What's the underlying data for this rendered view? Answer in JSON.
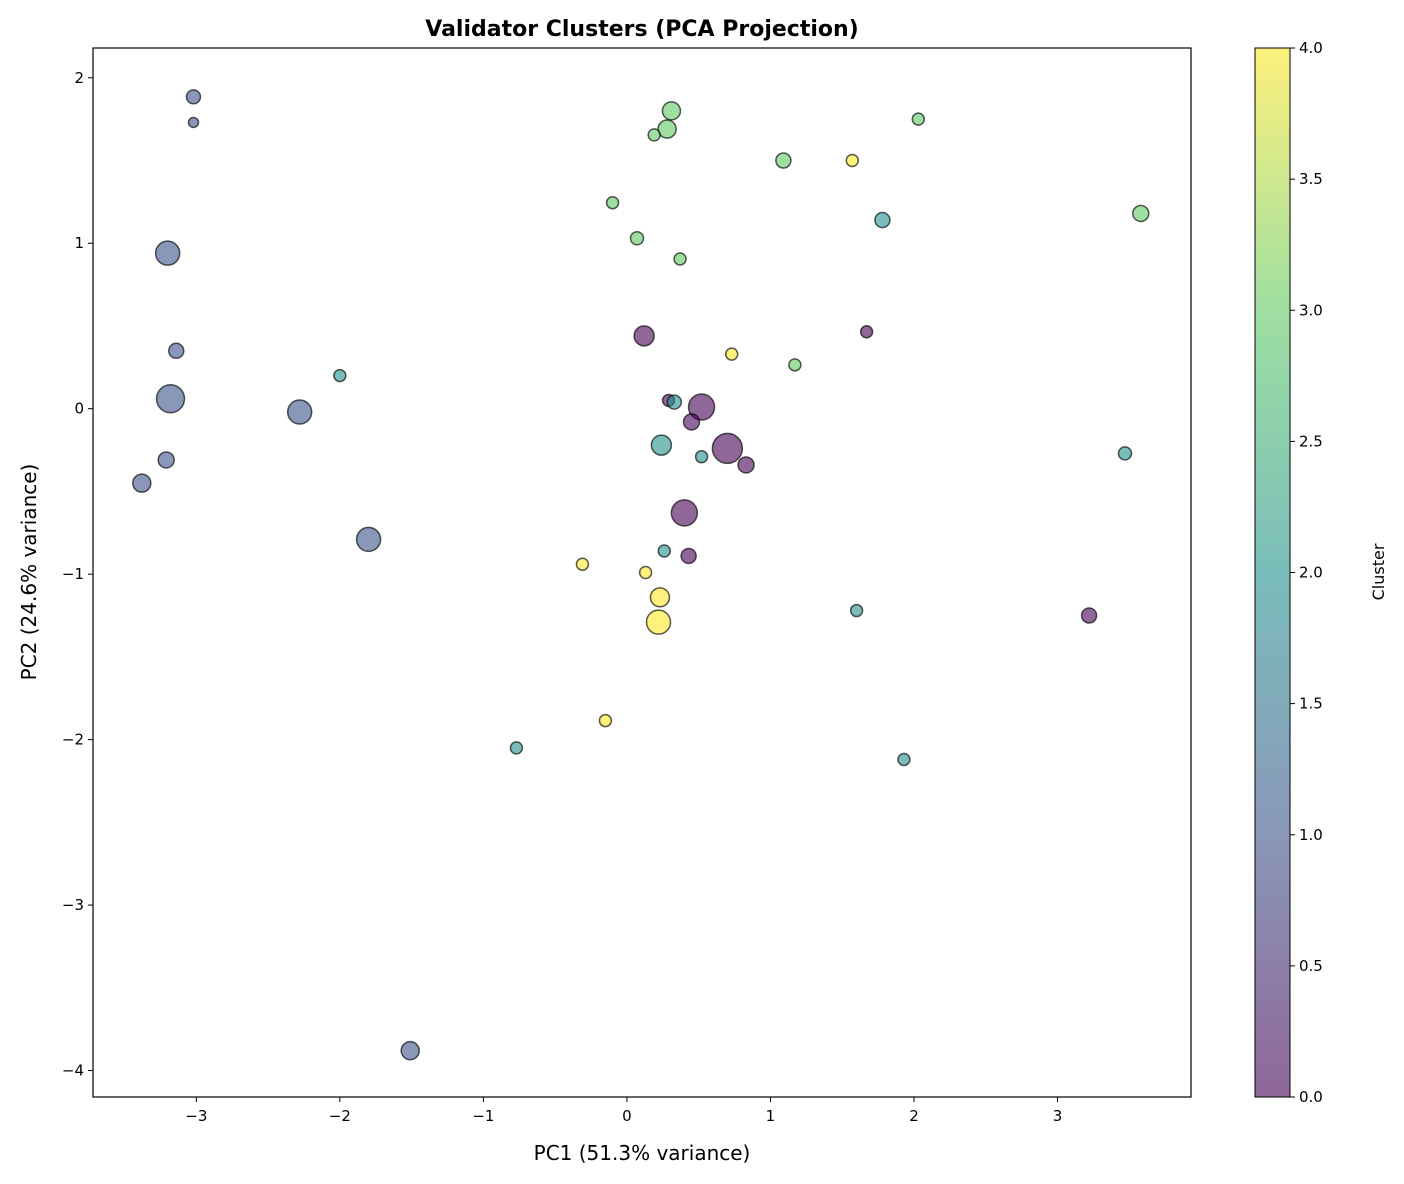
{
  "chart_data": {
    "type": "scatter",
    "title": "Validator Clusters (PCA Projection)",
    "xlabel": "PC1 (51.3% variance)",
    "ylabel": "PC2 (24.6% variance)",
    "xlim": [
      -3.72,
      3.93
    ],
    "ylim": [
      -4.16,
      2.18
    ],
    "xticks": [
      -3,
      -2,
      -1,
      0,
      1,
      2,
      3
    ],
    "yticks": [
      -4,
      -3,
      -2,
      -1,
      0,
      1,
      2
    ],
    "xtick_labels": [
      "−3",
      "−2",
      "−1",
      "0",
      "1",
      "2",
      "3"
    ],
    "ytick_labels": [
      "−4",
      "−3",
      "−2",
      "−1",
      "0",
      "1",
      "2"
    ],
    "grid": false,
    "colormap": "viridis",
    "colormap_stops": [
      "#440154",
      "#3b528b",
      "#21918c",
      "#5ec962",
      "#fde725"
    ],
    "marker_alpha": 0.6,
    "edge_color": "#000000",
    "colorbar": {
      "label": "Cluster",
      "range": [
        0,
        4
      ],
      "ticks": [
        0,
        0.5,
        1,
        1.5,
        2,
        2.5,
        3,
        3.5,
        4
      ],
      "tick_labels": [
        "0.0",
        "0.5",
        "1.0",
        "1.5",
        "2.0",
        "2.5",
        "3.0",
        "3.5",
        "4.0"
      ]
    },
    "points": [
      {
        "x": -3.02,
        "y": 1.885,
        "cluster": 1,
        "s": 45
      },
      {
        "x": -3.02,
        "y": 1.73,
        "cluster": 1,
        "s": 23
      },
      {
        "x": -3.2,
        "y": 0.94,
        "cluster": 1,
        "s": 133
      },
      {
        "x": -3.14,
        "y": 0.35,
        "cluster": 1,
        "s": 52
      },
      {
        "x": -3.18,
        "y": 0.06,
        "cluster": 1,
        "s": 180
      },
      {
        "x": -2.28,
        "y": -0.02,
        "cluster": 1,
        "s": 133
      },
      {
        "x": -3.21,
        "y": -0.31,
        "cluster": 1,
        "s": 59
      },
      {
        "x": -3.38,
        "y": -0.45,
        "cluster": 1,
        "s": 75
      },
      {
        "x": -1.8,
        "y": -0.79,
        "cluster": 1,
        "s": 133
      },
      {
        "x": -1.51,
        "y": -3.88,
        "cluster": 1,
        "s": 75
      },
      {
        "x": 0.12,
        "y": 0.44,
        "cluster": 0,
        "s": 92
      },
      {
        "x": 1.67,
        "y": 0.465,
        "cluster": 0,
        "s": 33
      },
      {
        "x": 0.29,
        "y": 0.05,
        "cluster": 0,
        "s": 33
      },
      {
        "x": 0.52,
        "y": 0.01,
        "cluster": 0,
        "s": 156
      },
      {
        "x": 0.45,
        "y": -0.08,
        "cluster": 0,
        "s": 59
      },
      {
        "x": 0.7,
        "y": -0.24,
        "cluster": 0,
        "s": 207
      },
      {
        "x": 0.83,
        "y": -0.34,
        "cluster": 0,
        "s": 59
      },
      {
        "x": 0.4,
        "y": -0.63,
        "cluster": 0,
        "s": 156
      },
      {
        "x": 0.43,
        "y": -0.89,
        "cluster": 0,
        "s": 52
      },
      {
        "x": 3.22,
        "y": -1.25,
        "cluster": 0,
        "s": 52
      },
      {
        "x": -2.0,
        "y": 0.2,
        "cluster": 2,
        "s": 33
      },
      {
        "x": 1.78,
        "y": 1.14,
        "cluster": 2,
        "s": 52
      },
      {
        "x": 0.33,
        "y": 0.04,
        "cluster": 2,
        "s": 45
      },
      {
        "x": 0.24,
        "y": -0.22,
        "cluster": 2,
        "s": 92
      },
      {
        "x": 0.52,
        "y": -0.29,
        "cluster": 2,
        "s": 33
      },
      {
        "x": 0.26,
        "y": -0.86,
        "cluster": 2,
        "s": 33
      },
      {
        "x": 1.6,
        "y": -1.22,
        "cluster": 2,
        "s": 33
      },
      {
        "x": -0.77,
        "y": -2.05,
        "cluster": 2,
        "s": 33
      },
      {
        "x": 1.93,
        "y": -2.12,
        "cluster": 2,
        "s": 33
      },
      {
        "x": 3.47,
        "y": -0.27,
        "cluster": 2,
        "s": 39
      },
      {
        "x": 0.31,
        "y": 1.8,
        "cluster": 3,
        "s": 75
      },
      {
        "x": 0.28,
        "y": 1.69,
        "cluster": 3,
        "s": 75
      },
      {
        "x": 0.19,
        "y": 1.655,
        "cluster": 3,
        "s": 33
      },
      {
        "x": 2.03,
        "y": 1.75,
        "cluster": 3,
        "s": 33
      },
      {
        "x": 1.09,
        "y": 1.5,
        "cluster": 3,
        "s": 52
      },
      {
        "x": -0.1,
        "y": 1.245,
        "cluster": 3,
        "s": 33
      },
      {
        "x": 0.07,
        "y": 1.03,
        "cluster": 3,
        "s": 39
      },
      {
        "x": 0.37,
        "y": 0.905,
        "cluster": 3,
        "s": 33
      },
      {
        "x": 1.17,
        "y": 0.265,
        "cluster": 3,
        "s": 33
      },
      {
        "x": 3.58,
        "y": 1.18,
        "cluster": 3,
        "s": 59
      },
      {
        "x": 1.57,
        "y": 1.5,
        "cluster": 4,
        "s": 33
      },
      {
        "x": 0.73,
        "y": 0.33,
        "cluster": 4,
        "s": 33
      },
      {
        "x": -0.31,
        "y": -0.94,
        "cluster": 4,
        "s": 33
      },
      {
        "x": 0.13,
        "y": -0.99,
        "cluster": 4,
        "s": 33
      },
      {
        "x": 0.23,
        "y": -1.14,
        "cluster": 4,
        "s": 83
      },
      {
        "x": 0.22,
        "y": -1.29,
        "cluster": 4,
        "s": 133
      },
      {
        "x": -0.15,
        "y": -1.885,
        "cluster": 4,
        "s": 33
      }
    ]
  }
}
